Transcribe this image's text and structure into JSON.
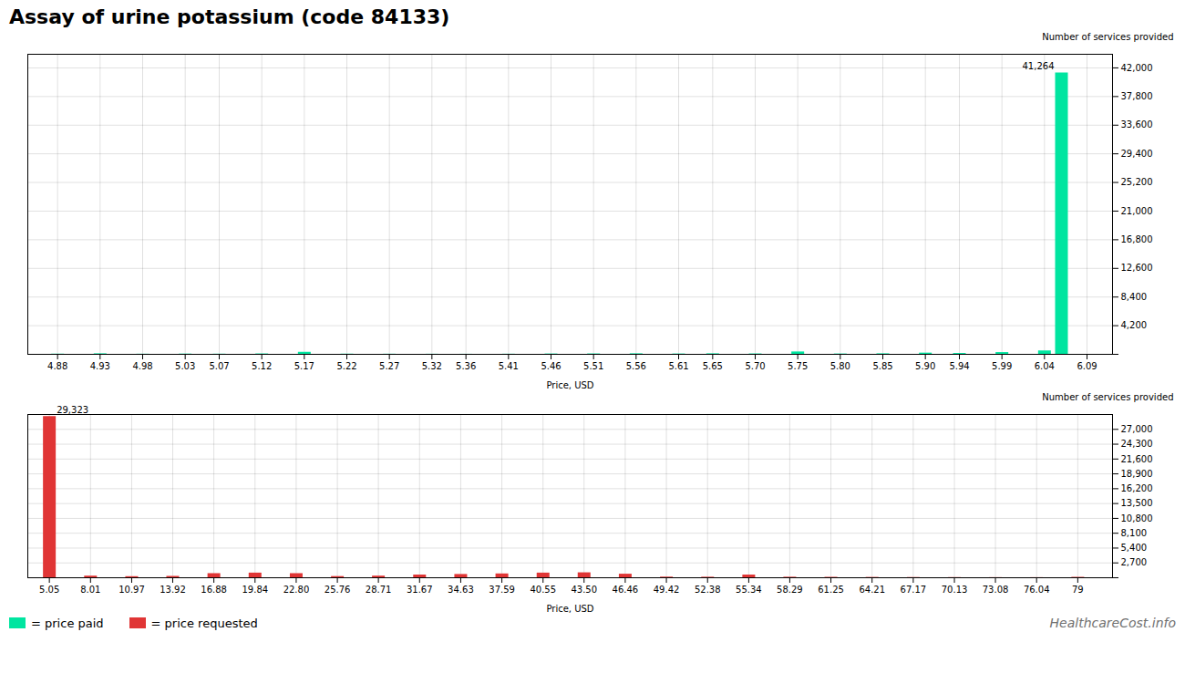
{
  "chart_data": [
    {
      "type": "bar",
      "title": "Assay of urine potassium (code 84133)",
      "xlabel": "Price, USD",
      "ylabel": "Number of services provided",
      "x": [
        4.88,
        4.93,
        4.98,
        5.03,
        5.07,
        5.12,
        5.17,
        5.22,
        5.27,
        5.32,
        5.36,
        5.41,
        5.46,
        5.51,
        5.56,
        5.61,
        5.65,
        5.7,
        5.75,
        5.8,
        5.85,
        5.9,
        5.94,
        5.99,
        6.04,
        6.06
      ],
      "series": [
        {
          "name": "= price paid",
          "color": "#00e5a0",
          "values": [
            30,
            80,
            20,
            40,
            25,
            60,
            300,
            30,
            20,
            15,
            10,
            20,
            50,
            60,
            80,
            50,
            80,
            60,
            350,
            50,
            80,
            180,
            130,
            260,
            500,
            41264
          ]
        }
      ],
      "xlim": [
        4.845,
        6.12
      ],
      "xticks": [
        4.88,
        4.93,
        4.98,
        5.03,
        5.07,
        5.12,
        5.17,
        5.22,
        5.27,
        5.32,
        5.36,
        5.41,
        5.46,
        5.51,
        5.56,
        5.61,
        5.65,
        {
          "value": 5.7,
          "label": "5.70"
        },
        5.75,
        {
          "value": 5.8,
          "label": "5.80"
        },
        5.85,
        {
          "value": 5.9,
          "label": "5.90"
        },
        5.94,
        5.99,
        6.04,
        6.09
      ],
      "ylim": [
        0,
        44000
      ],
      "yticks": [
        {
          "value": 0,
          "label": ""
        },
        {
          "value": 4200,
          "label": "4,200"
        },
        {
          "value": 8400,
          "label": "8,400"
        },
        {
          "value": 12600,
          "label": "12,600"
        },
        {
          "value": 16800,
          "label": "16,800"
        },
        {
          "value": 21000,
          "label": "21,000"
        },
        {
          "value": 25200,
          "label": "25,200"
        },
        {
          "value": 29400,
          "label": "29,400"
        },
        {
          "value": 33600,
          "label": "33,600"
        },
        {
          "value": 37800,
          "label": "37,800"
        },
        {
          "value": 42000,
          "label": "42,000"
        }
      ],
      "grid": true,
      "annotations": [
        {
          "text": "41,264",
          "x": 6.06,
          "y": 41264
        }
      ]
    },
    {
      "type": "bar",
      "xlabel": "Price, USD",
      "ylabel": "Number of services provided",
      "x": [
        5.05,
        8.01,
        10.97,
        13.92,
        16.88,
        19.84,
        22.8,
        25.76,
        28.71,
        31.67,
        34.63,
        37.59,
        40.55,
        43.5,
        46.46,
        49.42,
        52.38,
        55.34,
        58.29,
        61.25,
        64.21,
        67.17,
        70.13,
        73.08,
        76.04,
        79
      ],
      "series": [
        {
          "name": "= price requested",
          "color": "#e03535",
          "values": [
            29323,
            300,
            200,
            250,
            750,
            850,
            750,
            220,
            300,
            500,
            600,
            700,
            850,
            900,
            650,
            120,
            100,
            500,
            100,
            80,
            60,
            40,
            30,
            20,
            15,
            80
          ]
        }
      ],
      "xlim": [
        3.5,
        81.5
      ],
      "xticks": [
        5.05,
        8.01,
        10.97,
        13.92,
        16.88,
        19.84,
        {
          "value": 22.8,
          "label": "22.80"
        },
        25.76,
        28.71,
        31.67,
        34.63,
        37.59,
        40.55,
        {
          "value": 43.5,
          "label": "43.50"
        },
        46.46,
        49.42,
        52.38,
        55.34,
        58.29,
        61.25,
        64.21,
        67.17,
        70.13,
        73.08,
        76.04,
        79
      ],
      "ylim": [
        0,
        29700
      ],
      "yticks": [
        {
          "value": 0,
          "label": ""
        },
        {
          "value": 2700,
          "label": "2,700"
        },
        {
          "value": 5400,
          "label": "5,400"
        },
        {
          "value": 8100,
          "label": "8,100"
        },
        {
          "value": 10800,
          "label": "10,800"
        },
        {
          "value": 13500,
          "label": "13,500"
        },
        {
          "value": 16200,
          "label": "16,200"
        },
        {
          "value": 18900,
          "label": "18,900"
        },
        {
          "value": 21600,
          "label": "21,600"
        },
        {
          "value": 24300,
          "label": "24,300"
        },
        {
          "value": 27000,
          "label": "27,000"
        }
      ],
      "grid": true,
      "legend": "lower left",
      "annotations": [
        {
          "text": "29,323",
          "x": 5.05,
          "y": 29323
        },
        {
          "text": "HealthcareCost.info"
        }
      ]
    }
  ]
}
